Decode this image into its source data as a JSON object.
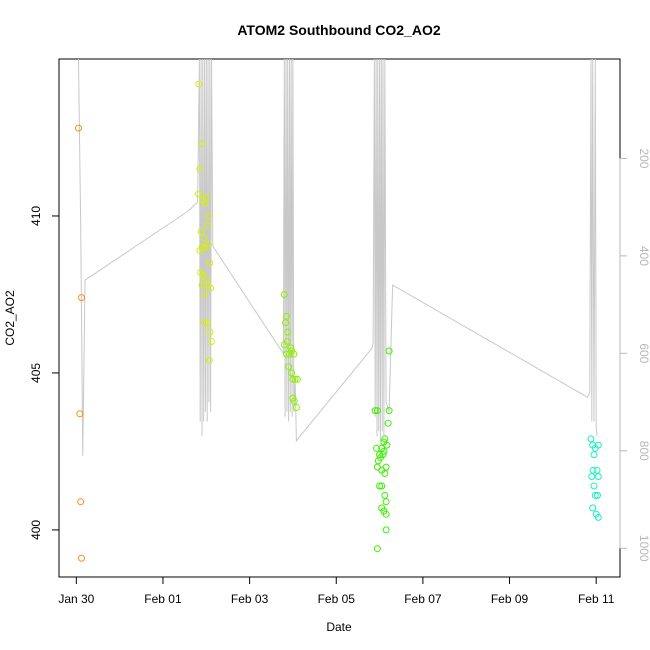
{
  "chart_data": {
    "type": "scatter",
    "title": "ATOM2 Southbound CO2_AO2",
    "xlabel": "Date",
    "ylabel": "CO2_AO2",
    "x_unit": "days",
    "x_ticks": [
      {
        "value": 0,
        "label": "Jan 30"
      },
      {
        "value": 2,
        "label": "Feb 01"
      },
      {
        "value": 4,
        "label": "Feb 03"
      },
      {
        "value": 6,
        "label": "Feb 05"
      },
      {
        "value": 8,
        "label": "Feb 07"
      },
      {
        "value": 10,
        "label": "Feb 09"
      },
      {
        "value": 12,
        "label": "Feb 11"
      }
    ],
    "xlim": [
      -0.4,
      12.55
    ],
    "ylim": [
      398.5,
      415.0
    ],
    "y_ticks": [
      400,
      405,
      410
    ],
    "y_tick_labels": [
      "400",
      "405",
      "410"
    ],
    "y2_ticks": [
      200,
      400,
      600,
      800,
      1000
    ],
    "y2_tick_labels": [
      "200",
      "400",
      "600",
      "800",
      "1000"
    ],
    "y2lim": [
      -4,
      1059
    ],
    "grid": false,
    "point_series": [
      {
        "color": "#FF8C1A",
        "points": [
          [
            0.05,
            412.8
          ],
          [
            0.12,
            407.4
          ],
          [
            0.08,
            403.7
          ],
          [
            0.1,
            400.9
          ],
          [
            0.12,
            399.1
          ]
        ]
      },
      {
        "color": "#D8F000",
        "points": [
          [
            2.83,
            414.2
          ],
          [
            2.9,
            412.3
          ],
          [
            2.85,
            411.5
          ],
          [
            2.82,
            410.7
          ],
          [
            2.92,
            410.5
          ],
          [
            2.97,
            410.4
          ],
          [
            3.0,
            410.6
          ],
          [
            3.05,
            410.0
          ],
          [
            2.88,
            409.5
          ],
          [
            2.95,
            409.3
          ],
          [
            3.03,
            409.7
          ],
          [
            2.85,
            408.9
          ],
          [
            2.9,
            409.0
          ],
          [
            2.98,
            409.0
          ],
          [
            3.05,
            409.1
          ],
          [
            3.08,
            408.5
          ],
          [
            2.87,
            408.2
          ],
          [
            2.93,
            408.1
          ],
          [
            3.0,
            408.0
          ],
          [
            2.9,
            407.8
          ],
          [
            3.02,
            407.8
          ],
          [
            2.96,
            407.5
          ],
          [
            3.1,
            407.7
          ],
          [
            2.95,
            406.6
          ],
          [
            3.03,
            406.6
          ],
          [
            3.08,
            406.3
          ],
          [
            3.12,
            406.0
          ],
          [
            3.07,
            405.4
          ]
        ]
      },
      {
        "color": "#8CF000",
        "points": [
          [
            4.8,
            407.5
          ],
          [
            4.85,
            406.8
          ],
          [
            4.83,
            406.6
          ],
          [
            4.88,
            406.3
          ],
          [
            4.8,
            405.9
          ],
          [
            4.87,
            406.0
          ],
          [
            4.95,
            405.8
          ],
          [
            4.92,
            405.6
          ],
          [
            4.85,
            405.6
          ],
          [
            4.97,
            405.7
          ],
          [
            5.02,
            405.6
          ],
          [
            4.9,
            405.2
          ],
          [
            4.97,
            405.0
          ],
          [
            5.0,
            404.8
          ],
          [
            5.05,
            404.8
          ],
          [
            5.1,
            404.8
          ],
          [
            5.0,
            404.2
          ],
          [
            5.03,
            404.1
          ],
          [
            5.08,
            403.9
          ]
        ]
      },
      {
        "color": "#3CF000",
        "points": [
          [
            6.9,
            403.8
          ],
          [
            6.95,
            403.8
          ],
          [
            6.93,
            402.6
          ],
          [
            7.0,
            402.4
          ],
          [
            7.05,
            402.6
          ],
          [
            7.1,
            402.5
          ],
          [
            6.97,
            402.2
          ],
          [
            7.02,
            402.3
          ],
          [
            7.08,
            402.4
          ],
          [
            6.95,
            402.0
          ],
          [
            7.05,
            401.9
          ],
          [
            7.12,
            401.8
          ],
          [
            7.15,
            402.0
          ],
          [
            7.17,
            402.7
          ],
          [
            7.1,
            402.8
          ],
          [
            7.12,
            402.9
          ],
          [
            7.2,
            403.4
          ],
          [
            7.22,
            403.8
          ],
          [
            7.0,
            401.4
          ],
          [
            7.05,
            401.4
          ],
          [
            7.12,
            401.1
          ],
          [
            7.15,
            400.9
          ],
          [
            7.1,
            400.6
          ],
          [
            7.05,
            400.7
          ],
          [
            7.15,
            400.5
          ],
          [
            7.15,
            400.0
          ],
          [
            6.95,
            399.4
          ],
          [
            7.22,
            405.7
          ]
        ]
      },
      {
        "color": "#1AF0C0",
        "points": [
          [
            11.88,
            402.9
          ],
          [
            11.92,
            402.7
          ],
          [
            11.98,
            402.6
          ],
          [
            12.05,
            402.7
          ],
          [
            11.95,
            402.4
          ],
          [
            11.93,
            401.9
          ],
          [
            12.02,
            401.9
          ],
          [
            11.9,
            401.7
          ],
          [
            12.05,
            401.7
          ],
          [
            11.95,
            401.4
          ],
          [
            11.98,
            401.1
          ],
          [
            12.03,
            401.1
          ],
          [
            11.92,
            400.7
          ],
          [
            12.0,
            400.5
          ],
          [
            12.05,
            400.4
          ]
        ]
      }
    ],
    "line_series": {
      "color": "#C8C8C8",
      "axis": "right",
      "points": [
        [
          0.05,
          -4
        ],
        [
          0.1,
          340
        ],
        [
          0.15,
          810
        ],
        [
          0.2,
          450
        ],
        [
          2.55,
          310
        ],
        [
          2.8,
          290
        ],
        [
          2.84,
          -4
        ],
        [
          2.86,
          740
        ],
        [
          2.88,
          -4
        ],
        [
          2.9,
          770
        ],
        [
          2.92,
          -4
        ],
        [
          2.94,
          740
        ],
        [
          2.96,
          -4
        ],
        [
          2.98,
          720
        ],
        [
          3.0,
          -4
        ],
        [
          3.02,
          740
        ],
        [
          3.04,
          -4
        ],
        [
          3.06,
          700
        ],
        [
          3.08,
          -4
        ],
        [
          3.1,
          720
        ],
        [
          3.12,
          -4
        ],
        [
          3.15,
          380
        ],
        [
          4.7,
          590
        ],
        [
          4.78,
          600
        ],
        [
          4.8,
          -4
        ],
        [
          4.82,
          730
        ],
        [
          4.84,
          -4
        ],
        [
          4.86,
          720
        ],
        [
          4.88,
          -4
        ],
        [
          4.9,
          740
        ],
        [
          4.92,
          -4
        ],
        [
          4.94,
          720
        ],
        [
          4.96,
          -4
        ],
        [
          4.98,
          730
        ],
        [
          5.0,
          -4
        ],
        [
          5.02,
          720
        ],
        [
          5.05,
          650
        ],
        [
          5.08,
          780
        ],
        [
          5.12,
          775
        ],
        [
          6.82,
          590
        ],
        [
          6.85,
          580
        ],
        [
          6.88,
          -4
        ],
        [
          6.9,
          730
        ],
        [
          6.92,
          -4
        ],
        [
          6.94,
          770
        ],
        [
          6.96,
          -4
        ],
        [
          6.98,
          760
        ],
        [
          7.0,
          -4
        ],
        [
          7.02,
          780
        ],
        [
          7.04,
          -4
        ],
        [
          7.06,
          760
        ],
        [
          7.08,
          -4
        ],
        [
          7.1,
          770
        ],
        [
          7.12,
          -4
        ],
        [
          7.15,
          700
        ],
        [
          7.22,
          720
        ],
        [
          7.3,
          460
        ],
        [
          11.8,
          690
        ],
        [
          11.85,
          680
        ],
        [
          11.88,
          -4
        ],
        [
          11.9,
          740
        ],
        [
          11.92,
          -4
        ],
        [
          11.95,
          740
        ],
        [
          11.98,
          -4
        ],
        [
          12.0,
          750
        ],
        [
          12.02,
          770
        ]
      ]
    }
  }
}
